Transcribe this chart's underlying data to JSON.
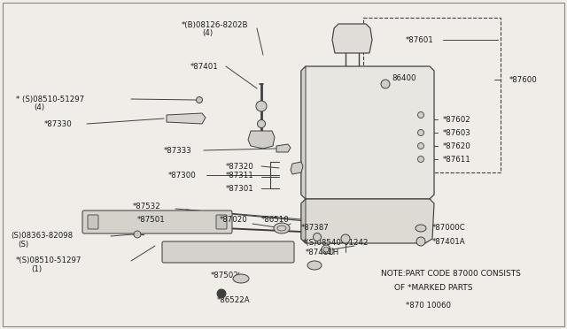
{
  "bg_color": "#f0ede8",
  "line_color": "#404040",
  "text_color": "#1a1a1a",
  "note_line1": "NOTE:PART CODE 87000 CONSISTS",
  "note_line2": "OF *MARKED PARTS",
  "note_line3": "*870 10060",
  "figsize": [
    6.4,
    3.72
  ],
  "dpi": 100
}
